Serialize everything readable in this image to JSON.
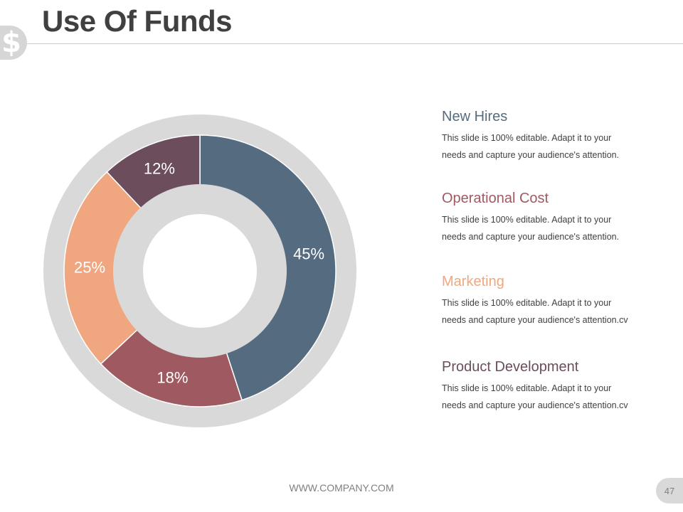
{
  "slide": {
    "title": "Use Of Funds",
    "badge_icon": "dollar-icon",
    "badge_glyph": "$",
    "footer": "WWW.COMPANY.COM",
    "page_number": "47"
  },
  "legend": [
    {
      "title": "New Hires",
      "desc": "This slide is 100% editable. Adapt it to your\nneeds and capture your audience's attention.",
      "color": "#556b80"
    },
    {
      "title": "Operational Cost",
      "desc": "This slide is 100% editable. Adapt it to your\nneeds and capture your audience's attention.",
      "color": "#9e5a60"
    },
    {
      "title": "Marketing",
      "desc": "This slide is 100% editable. Adapt it to your\nneeds and capture your audience's attention.cv",
      "color": "#f0a77f"
    },
    {
      "title": "Product Development",
      "desc": "This slide is 100% editable. Adapt it to your\nneeds and capture your audience's attention.cv",
      "color": "#6b4d5c"
    }
  ],
  "chart_data": {
    "type": "pie",
    "categories": [
      "New Hires",
      "Operational Cost",
      "Marketing",
      "Product Development"
    ],
    "values": [
      45,
      18,
      25,
      12
    ],
    "labels": [
      "45%",
      "18%",
      "25%",
      "12%"
    ],
    "colors": [
      "#556b80",
      "#9e5a60",
      "#f0a77f",
      "#6b4d5c"
    ],
    "style": "donut"
  }
}
